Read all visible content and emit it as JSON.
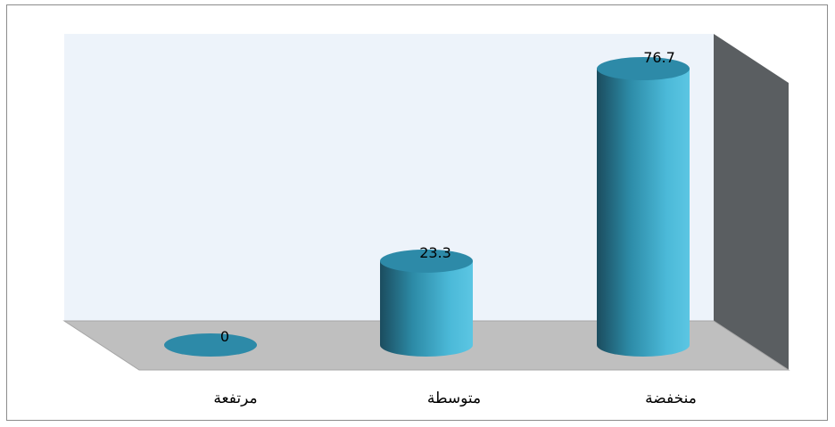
{
  "chart_data": {
    "type": "bar",
    "style": "3d-cylinder",
    "categories": [
      "مرتفعة",
      "متوسطة",
      "منخفضة"
    ],
    "values": [
      0,
      23.3,
      76.7
    ],
    "value_labels": [
      "0",
      "23.3",
      "76.7"
    ],
    "ylim": [
      0,
      76.7
    ],
    "grid": false,
    "legend": "none",
    "title": "",
    "xlabel": "",
    "ylabel": "",
    "colors": {
      "bar_light": "#4db8d9",
      "bar_dark": "#1b4c5e",
      "bar_top": "#2d8aa8",
      "back_wall": "#edf3fa",
      "side_wall": "#5a5e61",
      "floor": "#bfbfbf"
    }
  }
}
